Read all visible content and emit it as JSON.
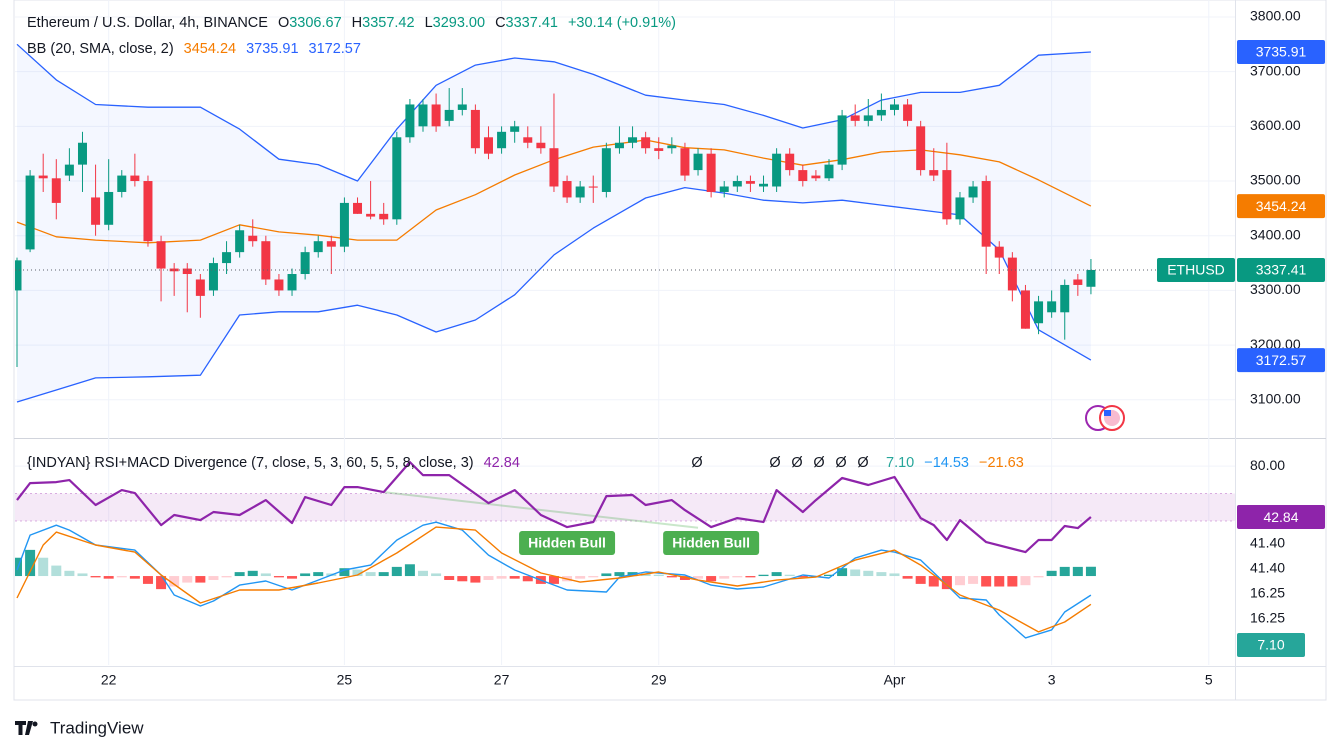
{
  "chart_data": [
    {
      "type": "candlestick",
      "title": "Ethereum / U.S. Dollar, 4h, BINANCE",
      "quote": [
        {
          "name": "O",
          "value": 3306.67
        },
        {
          "name": "H",
          "value": 3357.42
        },
        {
          "name": "L",
          "value": 3293,
          "value_label": "3293.00"
        },
        {
          "name": "C",
          "value": 3337.41
        }
      ],
      "change": "+30.14 (+0.91%)",
      "symbol": "ETHUSD",
      "up_color": "#089981",
      "down_color": "#f23645",
      "open": [
        3300,
        3375,
        3510,
        3505,
        3510,
        3530,
        3470,
        3420,
        3480,
        3510,
        3500,
        3390,
        3340,
        3340,
        3320,
        3300,
        3350,
        3370,
        3400,
        3390,
        3320,
        3300,
        3330,
        3370,
        3390,
        3380,
        3460,
        3440,
        3440,
        3430,
        3580,
        3600,
        3640,
        3610,
        3630,
        3630,
        3580,
        3560,
        3590,
        3580,
        3570,
        3560,
        3500,
        3470,
        3490,
        3480,
        3560,
        3570,
        3580,
        3560,
        3560,
        3560,
        3520,
        3550,
        3480,
        3490,
        3500,
        3490,
        3490,
        3550,
        3520,
        3510,
        3505,
        3530,
        3620,
        3610,
        3620,
        3630,
        3640,
        3600,
        3520,
        3520,
        3430,
        3470,
        3500,
        3380,
        3360,
        3300,
        3240,
        3260,
        3260,
        3320,
        3306.67
      ],
      "high": [
        3360,
        3520,
        3550,
        3540,
        3560,
        3590,
        3530,
        3540,
        3520,
        3550,
        3510,
        3400,
        3350,
        3350,
        3330,
        3360,
        3390,
        3420,
        3430,
        3400,
        3330,
        3340,
        3380,
        3400,
        3400,
        3470,
        3470,
        3500,
        3460,
        3590,
        3650,
        3650,
        3660,
        3670,
        3670,
        3640,
        3600,
        3600,
        3610,
        3600,
        3600,
        3660,
        3510,
        3500,
        3510,
        3570,
        3600,
        3600,
        3590,
        3580,
        3580,
        3570,
        3560,
        3560,
        3500,
        3510,
        3510,
        3510,
        3560,
        3560,
        3530,
        3520,
        3540,
        3630,
        3640,
        3650,
        3660,
        3650,
        3650,
        3610,
        3560,
        3570,
        3480,
        3500,
        3510,
        3390,
        3370,
        3310,
        3290,
        3300,
        3320,
        3330,
        3357.42
      ],
      "low": [
        3160,
        3370,
        3480,
        3430,
        3500,
        3480,
        3400,
        3410,
        3470,
        3490,
        3380,
        3280,
        3290,
        3260,
        3250,
        3290,
        3330,
        3360,
        3380,
        3310,
        3290,
        3290,
        3320,
        3360,
        3330,
        3370,
        3440,
        3430,
        3420,
        3420,
        3570,
        3590,
        3590,
        3600,
        3620,
        3550,
        3540,
        3550,
        3570,
        3560,
        3550,
        3480,
        3460,
        3460,
        3460,
        3470,
        3550,
        3560,
        3550,
        3540,
        3550,
        3500,
        3510,
        3470,
        3470,
        3480,
        3480,
        3480,
        3480,
        3510,
        3490,
        3500,
        3500,
        3520,
        3600,
        3600,
        3610,
        3620,
        3600,
        3510,
        3500,
        3420,
        3420,
        3460,
        3330,
        3330,
        3280,
        3230,
        3220,
        3250,
        3210,
        3290,
        3293
      ],
      "close": [
        3355,
        3510,
        3505,
        3460,
        3530,
        3570,
        3420,
        3480,
        3510,
        3500,
        3390,
        3340,
        3335,
        3330,
        3290,
        3350,
        3370,
        3410,
        3390,
        3320,
        3300,
        3330,
        3370,
        3390,
        3380,
        3460,
        3440,
        3435,
        3430,
        3580,
        3640,
        3640,
        3600,
        3630,
        3640,
        3560,
        3550,
        3590,
        3600,
        3570,
        3560,
        3490,
        3470,
        3490,
        3488,
        3560,
        3570,
        3580,
        3560,
        3555,
        3565,
        3510,
        3550,
        3480,
        3490,
        3500,
        3495,
        3495,
        3550,
        3520,
        3500,
        3505,
        3530,
        3620,
        3610,
        3620,
        3630,
        3640,
        3610,
        3520,
        3510,
        3430,
        3470,
        3490,
        3380,
        3360,
        3300,
        3230,
        3280,
        3280,
        3310,
        3310,
        3337.41
      ],
      "bands": {
        "name": "BB (20, SMA, close, 2)",
        "fill": "#2962ff",
        "x": [
          0,
          3,
          6,
          10,
          14,
          17,
          20,
          23,
          26,
          29,
          32,
          35,
          38,
          41,
          44,
          48,
          51,
          54,
          57,
          60,
          63,
          66,
          69,
          72,
          75,
          78,
          82
        ],
        "series": [
          {
            "color": "#f57c00",
            "values": [
              3425,
              3398,
              3392,
              3387,
              3392,
              3420,
              3407,
              3401,
              3392,
              3392,
              3447,
              3475,
              3511,
              3539,
              3562,
              3575,
              3561,
              3557,
              3542,
              3529,
              3539,
              3553,
              3557,
              3548,
              3535,
              3502,
              3454.24
            ]
          },
          {
            "color": "#2962ff",
            "values": [
              3750,
              3685,
              3640,
              3635,
              3635,
              3595,
              3540,
              3530,
              3500,
              3595,
              3675,
              3712,
              3725,
              3718,
              3695,
              3657,
              3648,
              3640,
              3620,
              3597,
              3612,
              3648,
              3662,
              3662,
              3675,
              3730,
              3735.91
            ]
          },
          {
            "color": "#2962ff",
            "values": [
              3096,
              3118,
              3140,
              3142,
              3145,
              3255,
              3261,
              3261,
              3273,
              3255,
              3224,
              3246,
              3292,
              3365,
              3414,
              3469,
              3488,
              3478,
              3465,
              3460,
              3465,
              3456,
              3447,
              3438,
              3374,
              3228,
              3172.57
            ]
          }
        ]
      },
      "xlim": [
        0,
        93
      ],
      "xticks": [
        {
          "value": 7,
          "label": "22"
        },
        {
          "value": 25,
          "label": "25"
        },
        {
          "value": 37,
          "label": "27"
        },
        {
          "value": 49,
          "label": "29"
        },
        {
          "value": 67,
          "label": "Apr"
        },
        {
          "value": 79,
          "label": "3"
        },
        {
          "value": 91,
          "label": "5"
        }
      ],
      "ylim": [
        3032,
        3831
      ],
      "yticks": [
        {
          "value": 3100,
          "label": "3100.00"
        },
        {
          "value": 3200,
          "label": "3200.00"
        },
        {
          "value": 3300,
          "label": "3300.00"
        },
        {
          "value": 3400,
          "label": "3400.00"
        },
        {
          "value": 3500,
          "label": "3500.00"
        },
        {
          "value": 3600,
          "label": "3600.00"
        },
        {
          "value": 3700,
          "label": "3700.00"
        },
        {
          "value": 3800,
          "label": "3800.00"
        }
      ],
      "grid": true
    },
    {
      "type": "indicator",
      "title": "{INDYAN} RSI+MACD Divergence (7, close, 5, 3, 60, 5, 5, 8, close, 3)",
      "symbols": [
        "Ø",
        "Ø",
        "Ø",
        "Ø",
        "Ø",
        "Ø"
      ],
      "ylim": [
        -65,
        99
      ],
      "yticks": [
        {
          "value": 80,
          "label": "80.00"
        }
      ],
      "y2lim": [
        -68,
        104
      ],
      "band": [
        40,
        60
      ],
      "band_color": "#9c27b0",
      "scale_labels": [
        "41.40",
        "41.40",
        "16.25",
        "16.25"
      ],
      "series": [
        {
          "type": "line",
          "color": "#8e24aa",
          "x": [
            0,
            1,
            3,
            4,
            6,
            8,
            9,
            11,
            12,
            14,
            15,
            17,
            19,
            21,
            22,
            24,
            25,
            26,
            28,
            30,
            31,
            33,
            36,
            38,
            40,
            42,
            44,
            45,
            47,
            48,
            50,
            51,
            53,
            55,
            57,
            58,
            60,
            61,
            63,
            65,
            67,
            69,
            70,
            71,
            72,
            74,
            77,
            78,
            79,
            80,
            81,
            82
          ],
          "values": [
            55.2,
            67.6,
            68.3,
            69.8,
            51.6,
            62.5,
            60.3,
            37,
            44.3,
            40.6,
            46.5,
            44.3,
            55.2,
            38.5,
            57.4,
            51.6,
            64.7,
            64.7,
            61,
            82.9,
            73.4,
            73.4,
            53,
            62.5,
            44.3,
            35.5,
            39.2,
            58.1,
            58.9,
            51.6,
            55.2,
            47.9,
            35.5,
            42.1,
            39.2,
            62.5,
            46.5,
            55.2,
            71.3,
            66.2,
            72,
            42.1,
            37,
            26.1,
            40.6,
            24.6,
            17.3,
            26.1,
            26.1,
            36.3,
            34.8,
            42.84
          ]
        },
        {
          "type": "histogram",
          "axis": "y2",
          "color": "#26a69a",
          "colors": [
            "#26a69a",
            "#b2dfdb",
            "#ff5252",
            "#ffcdd2"
          ],
          "label": "7.10",
          "values": [
            14,
            20,
            14,
            8,
            4,
            2,
            -1,
            -2,
            -1,
            -2,
            -6,
            -10,
            -8,
            -5,
            -5,
            -3,
            -1,
            3,
            4,
            2,
            -1,
            -2,
            2,
            3,
            2,
            6,
            5,
            3,
            3,
            7,
            9,
            4,
            2,
            -3,
            -4,
            -5,
            -3,
            -2,
            -2,
            -4,
            -6,
            -6,
            -4,
            -2,
            -1,
            2,
            3,
            3,
            2,
            1,
            -1,
            -3,
            -2,
            -4,
            -2,
            -1,
            -1,
            1,
            3,
            1,
            -1,
            -1,
            1,
            6,
            5,
            4,
            3,
            2,
            -2,
            -6,
            -8,
            -10,
            -7,
            -6,
            -8,
            -8,
            -8,
            -7,
            -1,
            4,
            7,
            7,
            7.1
          ]
        },
        {
          "type": "line",
          "axis": "y2",
          "color": "#2196f3",
          "label": "−14.53",
          "x": [
            0,
            1,
            3,
            4,
            6,
            9,
            11,
            12,
            14,
            15,
            17,
            19,
            21,
            23,
            25,
            27,
            29,
            31,
            32,
            34,
            36,
            38,
            40,
            42,
            45,
            46,
            48,
            51,
            53,
            55,
            57,
            60,
            62,
            64,
            66,
            67,
            69,
            71,
            72,
            74,
            75,
            77,
            79,
            80,
            82
          ],
          "values": [
            4.6,
            31.3,
            38.9,
            35.1,
            23.7,
            19.8,
            0.8,
            -14.5,
            -22.9,
            -19.1,
            -6.9,
            -3.8,
            -10.7,
            -3.1,
            4.6,
            8.4,
            27.5,
            38.9,
            41.2,
            35.1,
            16,
            4.6,
            -3.1,
            -10.7,
            -12.2,
            -0.8,
            3.1,
            0.8,
            -6.9,
            -9.9,
            -8.4,
            0.8,
            -1.5,
            13.7,
            19.8,
            18.3,
            12.2,
            -6.9,
            -16.8,
            -18.3,
            -29.8,
            -47.3,
            -41.2,
            -27.5,
            -14.53
          ]
        },
        {
          "type": "line",
          "axis": "y2",
          "color": "#f57c00",
          "label": "−21.63",
          "x": [
            0,
            2,
            3,
            6,
            9,
            11,
            14,
            17,
            20,
            23,
            26,
            29,
            32,
            35,
            37,
            40,
            43,
            46,
            49,
            52,
            55,
            58,
            61,
            64,
            67,
            69,
            72,
            75,
            78,
            80,
            82
          ],
          "values": [
            -16.8,
            23.7,
            33.6,
            23.7,
            18.3,
            0.8,
            -20.6,
            -10.7,
            -10.7,
            -5.3,
            0.8,
            17.6,
            37.4,
            35.1,
            17.6,
            2.3,
            -4.6,
            -1.5,
            3.1,
            -3.1,
            -7.6,
            -3.1,
            -0.8,
            12.2,
            19.8,
            8.4,
            -14.5,
            -26,
            -42.7,
            -35.1,
            -21.63
          ]
        }
      ],
      "divergence": {
        "x": [
          28,
          52
        ],
        "values": [
          61,
          35
        ]
      },
      "annotations": [
        {
          "text": "Hidden Bull",
          "x": 42,
          "color": "#4caf50"
        },
        {
          "text": "Hidden Bull",
          "x": 53,
          "color": "#4caf50"
        }
      ]
    }
  ],
  "brand": "TradingView"
}
